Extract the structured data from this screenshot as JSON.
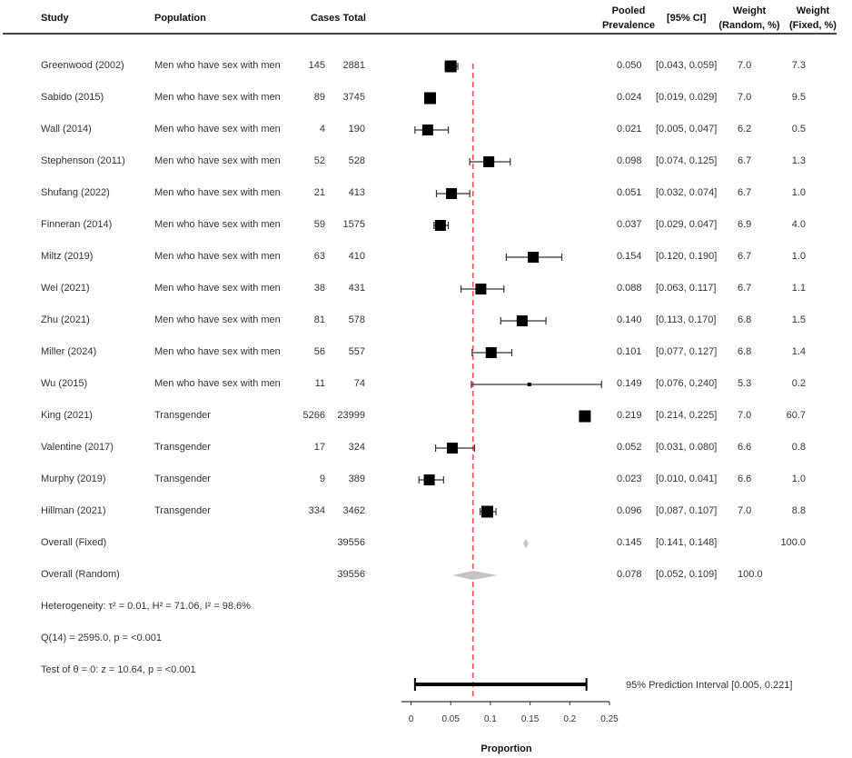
{
  "headers": {
    "study": "Study",
    "population": "Population",
    "cases_total": "Cases Total",
    "prevalence_line1": "Pooled",
    "prevalence_line2": "Prevalence",
    "ci": "[95% CI]",
    "weight_random_line1": "Weight",
    "weight_random_line2": "(Random, %)",
    "weight_fixed_line1": "Weight",
    "weight_fixed_line2": "(Fixed, %)"
  },
  "rows": [
    {
      "study": "Greenwood (2002)",
      "population": "Men who have sex with men",
      "cases": "145",
      "total": "2881",
      "prev": "0.050",
      "ci": "[0.043, 0.059]",
      "w_random": "7.0",
      "w_fixed": "7.3"
    },
    {
      "study": "Sabido (2015)",
      "population": "Men who have sex with men",
      "cases": "89",
      "total": "3745",
      "prev": "0.024",
      "ci": "[0.019, 0.029]",
      "w_random": "7.0",
      "w_fixed": "9.5"
    },
    {
      "study": "Wall (2014)",
      "population": "Men who have sex with men",
      "cases": "4",
      "total": "190",
      "prev": "0.021",
      "ci": "[0.005, 0.047]",
      "w_random": "6.2",
      "w_fixed": "0.5"
    },
    {
      "study": "Stephenson (2011)",
      "population": "Men who have sex with men",
      "cases": "52",
      "total": "528",
      "prev": "0.098",
      "ci": "[0.074, 0.125]",
      "w_random": "6.7",
      "w_fixed": "1.3"
    },
    {
      "study": "Shufang (2022)",
      "population": "Men who have sex with men",
      "cases": "21",
      "total": "413",
      "prev": "0.051",
      "ci": "[0.032, 0.074]",
      "w_random": "6.7",
      "w_fixed": "1.0"
    },
    {
      "study": "Finneran (2014)",
      "population": "Men who have sex with men",
      "cases": "59",
      "total": "1575",
      "prev": "0.037",
      "ci": "[0.029, 0.047]",
      "w_random": "6.9",
      "w_fixed": "4.0"
    },
    {
      "study": "Miltz (2019)",
      "population": "Men who have sex with men",
      "cases": "63",
      "total": "410",
      "prev": "0.154",
      "ci": "[0.120, 0.190]",
      "w_random": "6.7",
      "w_fixed": "1.0"
    },
    {
      "study": "Wei (2021)",
      "population": "Men who have sex with men",
      "cases": "38",
      "total": "431",
      "prev": "0.088",
      "ci": "[0.063, 0.117]",
      "w_random": "6.7",
      "w_fixed": "1.1"
    },
    {
      "study": "Zhu (2021)",
      "population": "Men who have sex with men",
      "cases": "81",
      "total": "578",
      "prev": "0.140",
      "ci": "[0.113, 0.170]",
      "w_random": "6.8",
      "w_fixed": "1.5"
    },
    {
      "study": "Miller (2024)",
      "population": "Men who have sex with men",
      "cases": "56",
      "total": "557",
      "prev": "0.101",
      "ci": "[0.077, 0.127]",
      "w_random": "6.8",
      "w_fixed": "1.4"
    },
    {
      "study": "Wu (2015)",
      "population": "Men who have sex with men",
      "cases": "11",
      "total": "74",
      "prev": "0.149",
      "ci": "[0.076, 0.240]",
      "w_random": "5.3",
      "w_fixed": "0.2"
    },
    {
      "study": "King (2021)",
      "population": "Transgender",
      "cases": "5266",
      "total": "23999",
      "prev": "0.219",
      "ci": "[0.214, 0.225]",
      "w_random": "7.0",
      "w_fixed": "60.7"
    },
    {
      "study": "Valentine (2017)",
      "population": "Transgender",
      "cases": "17",
      "total": "324",
      "prev": "0.052",
      "ci": "[0.031, 0.080]",
      "w_random": "6.6",
      "w_fixed": "0.8"
    },
    {
      "study": "Murphy (2019)",
      "population": "Transgender",
      "cases": "9",
      "total": "389",
      "prev": "0.023",
      "ci": "[0.010, 0.041]",
      "w_random": "6.6",
      "w_fixed": "1.0"
    },
    {
      "study": "Hillman (2021)",
      "population": "Transgender",
      "cases": "334",
      "total": "3462",
      "prev": "0.096",
      "ci": "[0.087, 0.107]",
      "w_random": "7.0",
      "w_fixed": "8.8"
    },
    {
      "study": "Overall (Fixed)",
      "population": "",
      "cases": "",
      "total": "39556",
      "prev": "0.145",
      "ci": "[0.141, 0.148]",
      "w_random": "",
      "w_fixed": "100.0"
    },
    {
      "study": "Overall (Random)",
      "population": "",
      "cases": "",
      "total": "39556",
      "prev": "0.078",
      "ci": "[0.052, 0.109]",
      "w_random": "100.0",
      "w_fixed": ""
    }
  ],
  "stats": {
    "heterogeneity": "Heterogeneity: τ² = 0.01, H² = 71.06, I² = 98.6%",
    "q_test": "Q(14) = 2595.0, p = <0.001",
    "theta_test": "Test of θ = 0: z = 10.64, p = <0.001"
  },
  "prediction_interval_label": "95% Prediction Interval [0.005, 0.221]",
  "colors": {
    "reference_line": "#ff4d4d",
    "marker": "#000000",
    "summary_diamond": "#c4c4c4",
    "axis": "#333333"
  },
  "chart_data": {
    "type": "forest",
    "xlabel": "Proportion",
    "xlim": [
      0,
      0.25
    ],
    "xticks": [
      0,
      0.05,
      0.1,
      0.15,
      0.2,
      0.25
    ],
    "xtick_labels": [
      "0",
      "0.05",
      "0.1",
      "0.15",
      "0.2",
      "0.25"
    ],
    "reference_line": 0.078,
    "studies": [
      {
        "label": "Greenwood (2002)",
        "est": 0.05,
        "lo": 0.043,
        "hi": 0.059,
        "w_fixed": 7.3
      },
      {
        "label": "Sabido (2015)",
        "est": 0.024,
        "lo": 0.019,
        "hi": 0.029,
        "w_fixed": 9.5
      },
      {
        "label": "Wall (2014)",
        "est": 0.021,
        "lo": 0.005,
        "hi": 0.047,
        "w_fixed": 0.5
      },
      {
        "label": "Stephenson (2011)",
        "est": 0.098,
        "lo": 0.074,
        "hi": 0.125,
        "w_fixed": 1.3
      },
      {
        "label": "Shufang (2022)",
        "est": 0.051,
        "lo": 0.032,
        "hi": 0.074,
        "w_fixed": 1.0
      },
      {
        "label": "Finneran (2014)",
        "est": 0.037,
        "lo": 0.029,
        "hi": 0.047,
        "w_fixed": 4.0
      },
      {
        "label": "Miltz (2019)",
        "est": 0.154,
        "lo": 0.12,
        "hi": 0.19,
        "w_fixed": 1.0
      },
      {
        "label": "Wei (2021)",
        "est": 0.088,
        "lo": 0.063,
        "hi": 0.117,
        "w_fixed": 1.1
      },
      {
        "label": "Zhu (2021)",
        "est": 0.14,
        "lo": 0.113,
        "hi": 0.17,
        "w_fixed": 1.5
      },
      {
        "label": "Miller (2024)",
        "est": 0.101,
        "lo": 0.077,
        "hi": 0.127,
        "w_fixed": 1.4
      },
      {
        "label": "Wu (2015)",
        "est": 0.149,
        "lo": 0.076,
        "hi": 0.24,
        "w_fixed": 0.2
      },
      {
        "label": "King (2021)",
        "est": 0.219,
        "lo": 0.214,
        "hi": 0.225,
        "w_fixed": 60.7
      },
      {
        "label": "Valentine (2017)",
        "est": 0.052,
        "lo": 0.031,
        "hi": 0.08,
        "w_fixed": 0.8
      },
      {
        "label": "Murphy (2019)",
        "est": 0.023,
        "lo": 0.01,
        "hi": 0.041,
        "w_fixed": 1.0
      },
      {
        "label": "Hillman (2021)",
        "est": 0.096,
        "lo": 0.087,
        "hi": 0.107,
        "w_fixed": 8.8
      }
    ],
    "summaries": [
      {
        "label": "Overall (Fixed)",
        "est": 0.145,
        "lo": 0.141,
        "hi": 0.148
      },
      {
        "label": "Overall (Random)",
        "est": 0.078,
        "lo": 0.052,
        "hi": 0.109
      }
    ],
    "prediction_interval": {
      "lo": 0.005,
      "hi": 0.221
    }
  }
}
